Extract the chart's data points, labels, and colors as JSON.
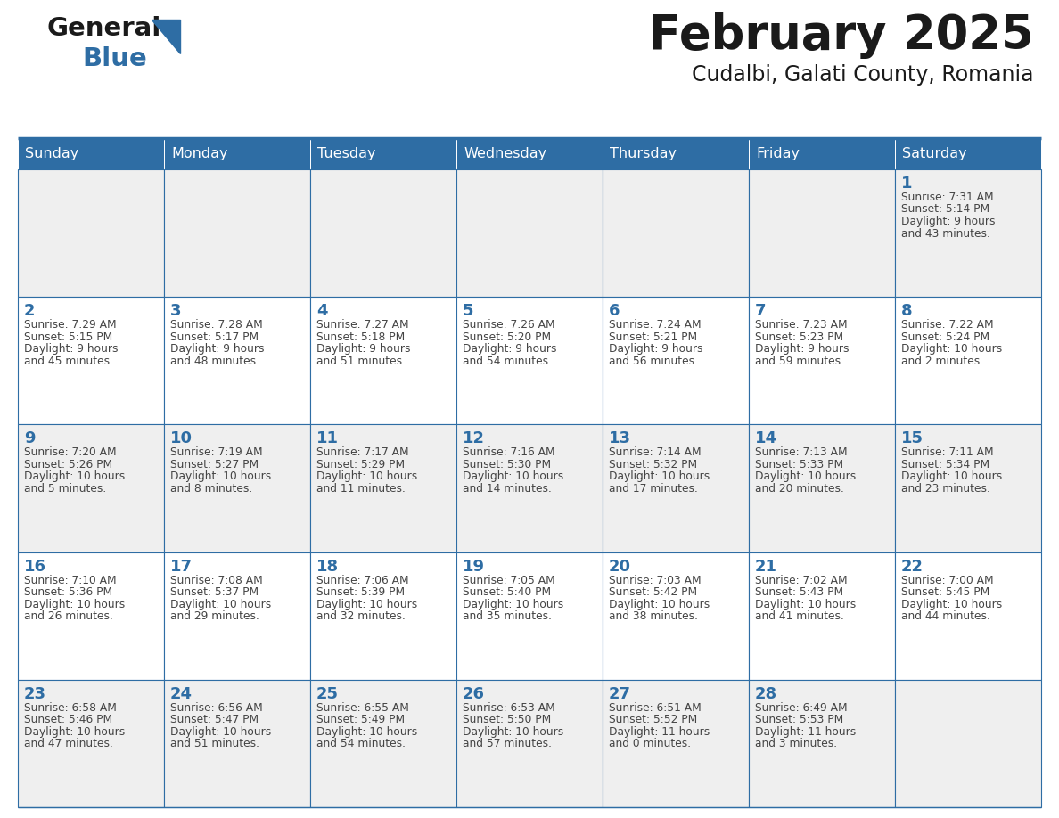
{
  "title": "February 2025",
  "subtitle": "Cudalbi, Galati County, Romania",
  "header_bg": "#2E6DA4",
  "header_text": "#FFFFFF",
  "cell_bg_odd": "#EFEFEF",
  "cell_bg_even": "#FFFFFF",
  "border_color": "#2E6DA4",
  "day_headers": [
    "Sunday",
    "Monday",
    "Tuesday",
    "Wednesday",
    "Thursday",
    "Friday",
    "Saturday"
  ],
  "title_color": "#1a1a1a",
  "subtitle_color": "#1a1a1a",
  "cell_text_color": "#444444",
  "day_num_color": "#2E6DA4",
  "logo_general_color": "#1a1a1a",
  "logo_blue_color": "#2E6DA4",
  "weeks": [
    [
      {
        "day": null,
        "info": ""
      },
      {
        "day": null,
        "info": ""
      },
      {
        "day": null,
        "info": ""
      },
      {
        "day": null,
        "info": ""
      },
      {
        "day": null,
        "info": ""
      },
      {
        "day": null,
        "info": ""
      },
      {
        "day": 1,
        "info": "Sunrise: 7:31 AM\nSunset: 5:14 PM\nDaylight: 9 hours\nand 43 minutes."
      }
    ],
    [
      {
        "day": 2,
        "info": "Sunrise: 7:29 AM\nSunset: 5:15 PM\nDaylight: 9 hours\nand 45 minutes."
      },
      {
        "day": 3,
        "info": "Sunrise: 7:28 AM\nSunset: 5:17 PM\nDaylight: 9 hours\nand 48 minutes."
      },
      {
        "day": 4,
        "info": "Sunrise: 7:27 AM\nSunset: 5:18 PM\nDaylight: 9 hours\nand 51 minutes."
      },
      {
        "day": 5,
        "info": "Sunrise: 7:26 AM\nSunset: 5:20 PM\nDaylight: 9 hours\nand 54 minutes."
      },
      {
        "day": 6,
        "info": "Sunrise: 7:24 AM\nSunset: 5:21 PM\nDaylight: 9 hours\nand 56 minutes."
      },
      {
        "day": 7,
        "info": "Sunrise: 7:23 AM\nSunset: 5:23 PM\nDaylight: 9 hours\nand 59 minutes."
      },
      {
        "day": 8,
        "info": "Sunrise: 7:22 AM\nSunset: 5:24 PM\nDaylight: 10 hours\nand 2 minutes."
      }
    ],
    [
      {
        "day": 9,
        "info": "Sunrise: 7:20 AM\nSunset: 5:26 PM\nDaylight: 10 hours\nand 5 minutes."
      },
      {
        "day": 10,
        "info": "Sunrise: 7:19 AM\nSunset: 5:27 PM\nDaylight: 10 hours\nand 8 minutes."
      },
      {
        "day": 11,
        "info": "Sunrise: 7:17 AM\nSunset: 5:29 PM\nDaylight: 10 hours\nand 11 minutes."
      },
      {
        "day": 12,
        "info": "Sunrise: 7:16 AM\nSunset: 5:30 PM\nDaylight: 10 hours\nand 14 minutes."
      },
      {
        "day": 13,
        "info": "Sunrise: 7:14 AM\nSunset: 5:32 PM\nDaylight: 10 hours\nand 17 minutes."
      },
      {
        "day": 14,
        "info": "Sunrise: 7:13 AM\nSunset: 5:33 PM\nDaylight: 10 hours\nand 20 minutes."
      },
      {
        "day": 15,
        "info": "Sunrise: 7:11 AM\nSunset: 5:34 PM\nDaylight: 10 hours\nand 23 minutes."
      }
    ],
    [
      {
        "day": 16,
        "info": "Sunrise: 7:10 AM\nSunset: 5:36 PM\nDaylight: 10 hours\nand 26 minutes."
      },
      {
        "day": 17,
        "info": "Sunrise: 7:08 AM\nSunset: 5:37 PM\nDaylight: 10 hours\nand 29 minutes."
      },
      {
        "day": 18,
        "info": "Sunrise: 7:06 AM\nSunset: 5:39 PM\nDaylight: 10 hours\nand 32 minutes."
      },
      {
        "day": 19,
        "info": "Sunrise: 7:05 AM\nSunset: 5:40 PM\nDaylight: 10 hours\nand 35 minutes."
      },
      {
        "day": 20,
        "info": "Sunrise: 7:03 AM\nSunset: 5:42 PM\nDaylight: 10 hours\nand 38 minutes."
      },
      {
        "day": 21,
        "info": "Sunrise: 7:02 AM\nSunset: 5:43 PM\nDaylight: 10 hours\nand 41 minutes."
      },
      {
        "day": 22,
        "info": "Sunrise: 7:00 AM\nSunset: 5:45 PM\nDaylight: 10 hours\nand 44 minutes."
      }
    ],
    [
      {
        "day": 23,
        "info": "Sunrise: 6:58 AM\nSunset: 5:46 PM\nDaylight: 10 hours\nand 47 minutes."
      },
      {
        "day": 24,
        "info": "Sunrise: 6:56 AM\nSunset: 5:47 PM\nDaylight: 10 hours\nand 51 minutes."
      },
      {
        "day": 25,
        "info": "Sunrise: 6:55 AM\nSunset: 5:49 PM\nDaylight: 10 hours\nand 54 minutes."
      },
      {
        "day": 26,
        "info": "Sunrise: 6:53 AM\nSunset: 5:50 PM\nDaylight: 10 hours\nand 57 minutes."
      },
      {
        "day": 27,
        "info": "Sunrise: 6:51 AM\nSunset: 5:52 PM\nDaylight: 11 hours\nand 0 minutes."
      },
      {
        "day": 28,
        "info": "Sunrise: 6:49 AM\nSunset: 5:53 PM\nDaylight: 11 hours\nand 3 minutes."
      },
      {
        "day": null,
        "info": ""
      }
    ]
  ]
}
